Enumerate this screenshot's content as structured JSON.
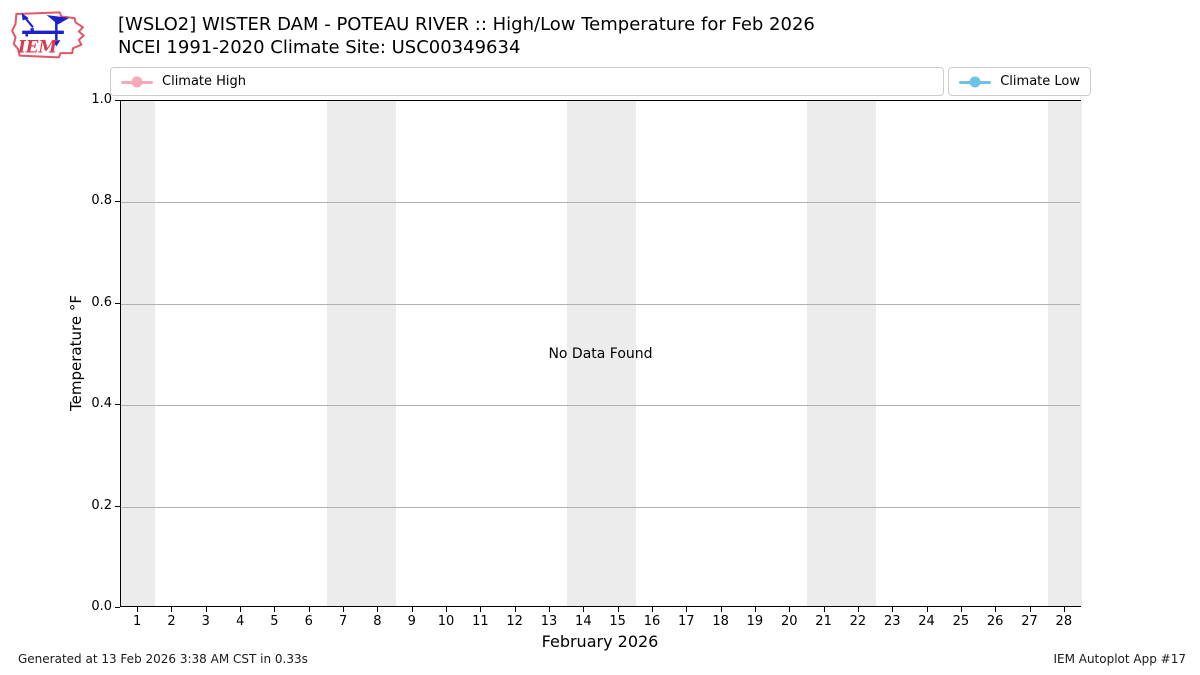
{
  "header": {
    "title_line1": "[WSLO2] WISTER DAM - POTEAU RIVER :: High/Low Temperature for Feb 2026",
    "title_line2": "NCEI 1991-2020 Climate Site: USC00349634",
    "logo_text": "IEM"
  },
  "legend": {
    "items": [
      {
        "label": "Climate High",
        "color": "#f7a8ba"
      },
      {
        "label": "Climate Low",
        "color": "#6fc3e8"
      }
    ]
  },
  "chart_data": {
    "type": "line",
    "title": "[WSLO2] WISTER DAM - POTEAU RIVER :: High/Low Temperature for Feb 2026",
    "subtitle": "NCEI 1991-2020 Climate Site: USC00349634",
    "xlabel": "February 2026",
    "ylabel": "Temperature °F",
    "annotation": "No Data Found",
    "xlim": [
      0.5,
      28.5
    ],
    "ylim": [
      0.0,
      1.0
    ],
    "xticks": [
      1,
      2,
      3,
      4,
      5,
      6,
      7,
      8,
      9,
      10,
      11,
      12,
      13,
      14,
      15,
      16,
      17,
      18,
      19,
      20,
      21,
      22,
      23,
      24,
      25,
      26,
      27,
      28
    ],
    "yticks": [
      0.0,
      0.2,
      0.4,
      0.6,
      0.8,
      1.0
    ],
    "grid": "horizontal",
    "legend_position": "top",
    "weekend_bands": [
      [
        0.5,
        1.5
      ],
      [
        6.5,
        8.5
      ],
      [
        13.5,
        15.5
      ],
      [
        20.5,
        22.5
      ],
      [
        27.5,
        28.5
      ]
    ],
    "band_color": "#ececec",
    "series": [
      {
        "name": "Climate High",
        "color": "#f7a8ba",
        "values": []
      },
      {
        "name": "Climate Low",
        "color": "#6fc3e8",
        "values": []
      }
    ]
  },
  "footer": {
    "left": "Generated at 13 Feb 2026 3:38 AM CST in 0.33s",
    "right": "IEM Autoplot App #17"
  }
}
